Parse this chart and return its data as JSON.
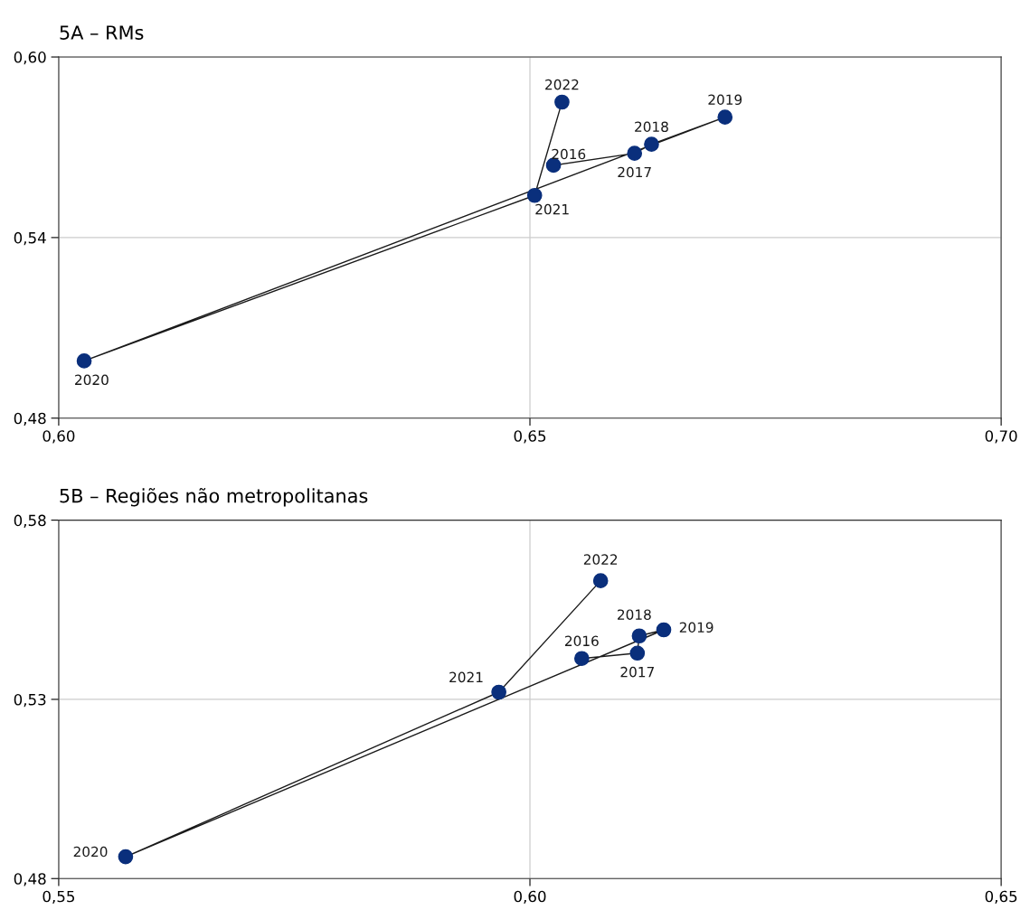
{
  "chart_data": [
    {
      "type": "line",
      "title": "5A – RMs",
      "marker": "circle",
      "grid": true,
      "xlim": [
        0.6,
        0.7
      ],
      "xticks": [
        {
          "value": 0.6,
          "label": "0,60"
        },
        {
          "value": 0.65,
          "label": "0,65"
        },
        {
          "value": 0.7,
          "label": "0,70"
        }
      ],
      "ylim": [
        0.48,
        0.6
      ],
      "yticks": [
        {
          "value": 0.48,
          "label": "0,48"
        },
        {
          "value": 0.54,
          "label": "0,54"
        },
        {
          "value": 0.6,
          "label": "0,60"
        }
      ],
      "series": [
        {
          "color": "#0a2f7c",
          "x": [
            0.6525,
            0.6611,
            0.6629,
            0.6707,
            0.6027,
            0.6505,
            0.6534
          ],
          "values": [
            0.564,
            0.568,
            0.571,
            0.58,
            0.499,
            0.554,
            0.585
          ]
        }
      ],
      "annotations": [
        {
          "text": "2016",
          "x": 0.6525,
          "y": 0.564
        },
        {
          "text": "2017",
          "x": 0.6611,
          "y": 0.568
        },
        {
          "text": "2018",
          "x": 0.6629,
          "y": 0.571
        },
        {
          "text": "2019",
          "x": 0.6707,
          "y": 0.58
        },
        {
          "text": "2020",
          "x": 0.6027,
          "y": 0.499
        },
        {
          "text": "2021",
          "x": 0.6505,
          "y": 0.554
        },
        {
          "text": "2022",
          "x": 0.6534,
          "y": 0.585
        }
      ]
    },
    {
      "type": "line",
      "title": "5B – Regiões não metropolitanas",
      "marker": "circle",
      "grid": true,
      "xlim": [
        0.55,
        0.65
      ],
      "xticks": [
        {
          "value": 0.55,
          "label": "0,55"
        },
        {
          "value": 0.6,
          "label": "0,60"
        },
        {
          "value": 0.65,
          "label": "0,65"
        }
      ],
      "ylim": [
        0.48,
        0.58
      ],
      "yticks": [
        {
          "value": 0.48,
          "label": "0,48"
        },
        {
          "value": 0.53,
          "label": "0,53"
        },
        {
          "value": 0.58,
          "label": "0,58"
        }
      ],
      "series": [
        {
          "color": "#0a2f7c",
          "x": [
            0.6055,
            0.6114,
            0.6116,
            0.6142,
            0.5571,
            0.5967,
            0.6075
          ],
          "values": [
            0.5414,
            0.5429,
            0.5477,
            0.5494,
            0.4861,
            0.532,
            0.5631
          ]
        }
      ],
      "annotations": [
        {
          "text": "2016",
          "x": 0.6055,
          "y": 0.5414
        },
        {
          "text": "2017",
          "x": 0.6114,
          "y": 0.5429
        },
        {
          "text": "2018",
          "x": 0.6116,
          "y": 0.5477
        },
        {
          "text": "2019",
          "x": 0.6142,
          "y": 0.5494
        },
        {
          "text": "2020",
          "x": 0.5571,
          "y": 0.4861
        },
        {
          "text": "2021",
          "x": 0.5967,
          "y": 0.532
        },
        {
          "text": "2022",
          "x": 0.6075,
          "y": 0.5631
        }
      ]
    }
  ]
}
